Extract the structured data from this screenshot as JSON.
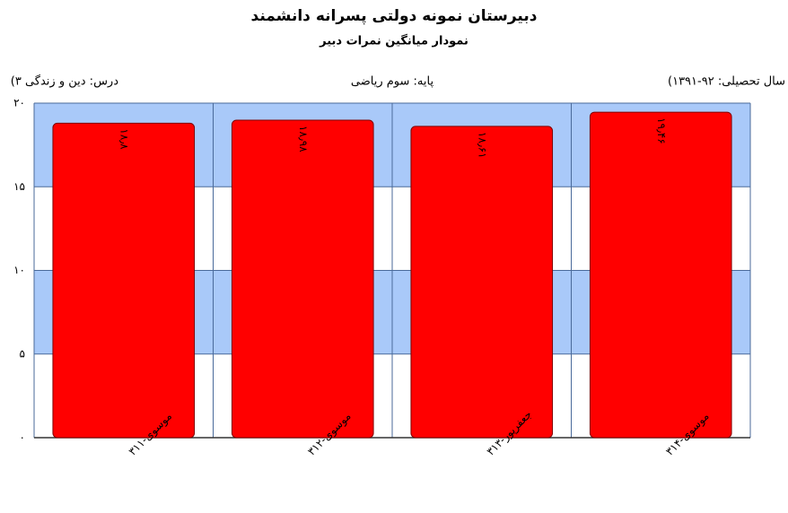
{
  "chart_data": {
    "type": "bar",
    "title": "دبیرستان  نمونه دولتی پسرانه دانشمند",
    "subtitle": "نمودار میانگین نمرات دبیر",
    "info_left": "درس: دین  و زندگی ۳)",
    "info_center": "پایه: سوم ریاضی",
    "info_right": "سال تحصیلی: ۹۲-۱۳۹۱)",
    "categories": [
      "موسوی-۳۱۱",
      "موسوی-۳۱۲",
      "جعفرپور-۳۱۳",
      "موسوی-۳۱۴"
    ],
    "values": [
      18.8,
      18.98,
      18.61,
      19.46
    ],
    "value_labels": [
      "۱۸٫۸",
      "۱۸٫۹۸",
      "۱۸٫۶۱",
      "۱۹٫۴۶"
    ],
    "color": "#ff0000",
    "ylim": [
      0,
      20
    ],
    "yticks": [
      {
        "value": 0,
        "label": "۰"
      },
      {
        "value": 5,
        "label": "۵"
      },
      {
        "value": 10,
        "label": "۱۰"
      },
      {
        "value": 15,
        "label": "۱۵"
      },
      {
        "value": 20,
        "label": "۲۰"
      }
    ],
    "grid": true
  }
}
